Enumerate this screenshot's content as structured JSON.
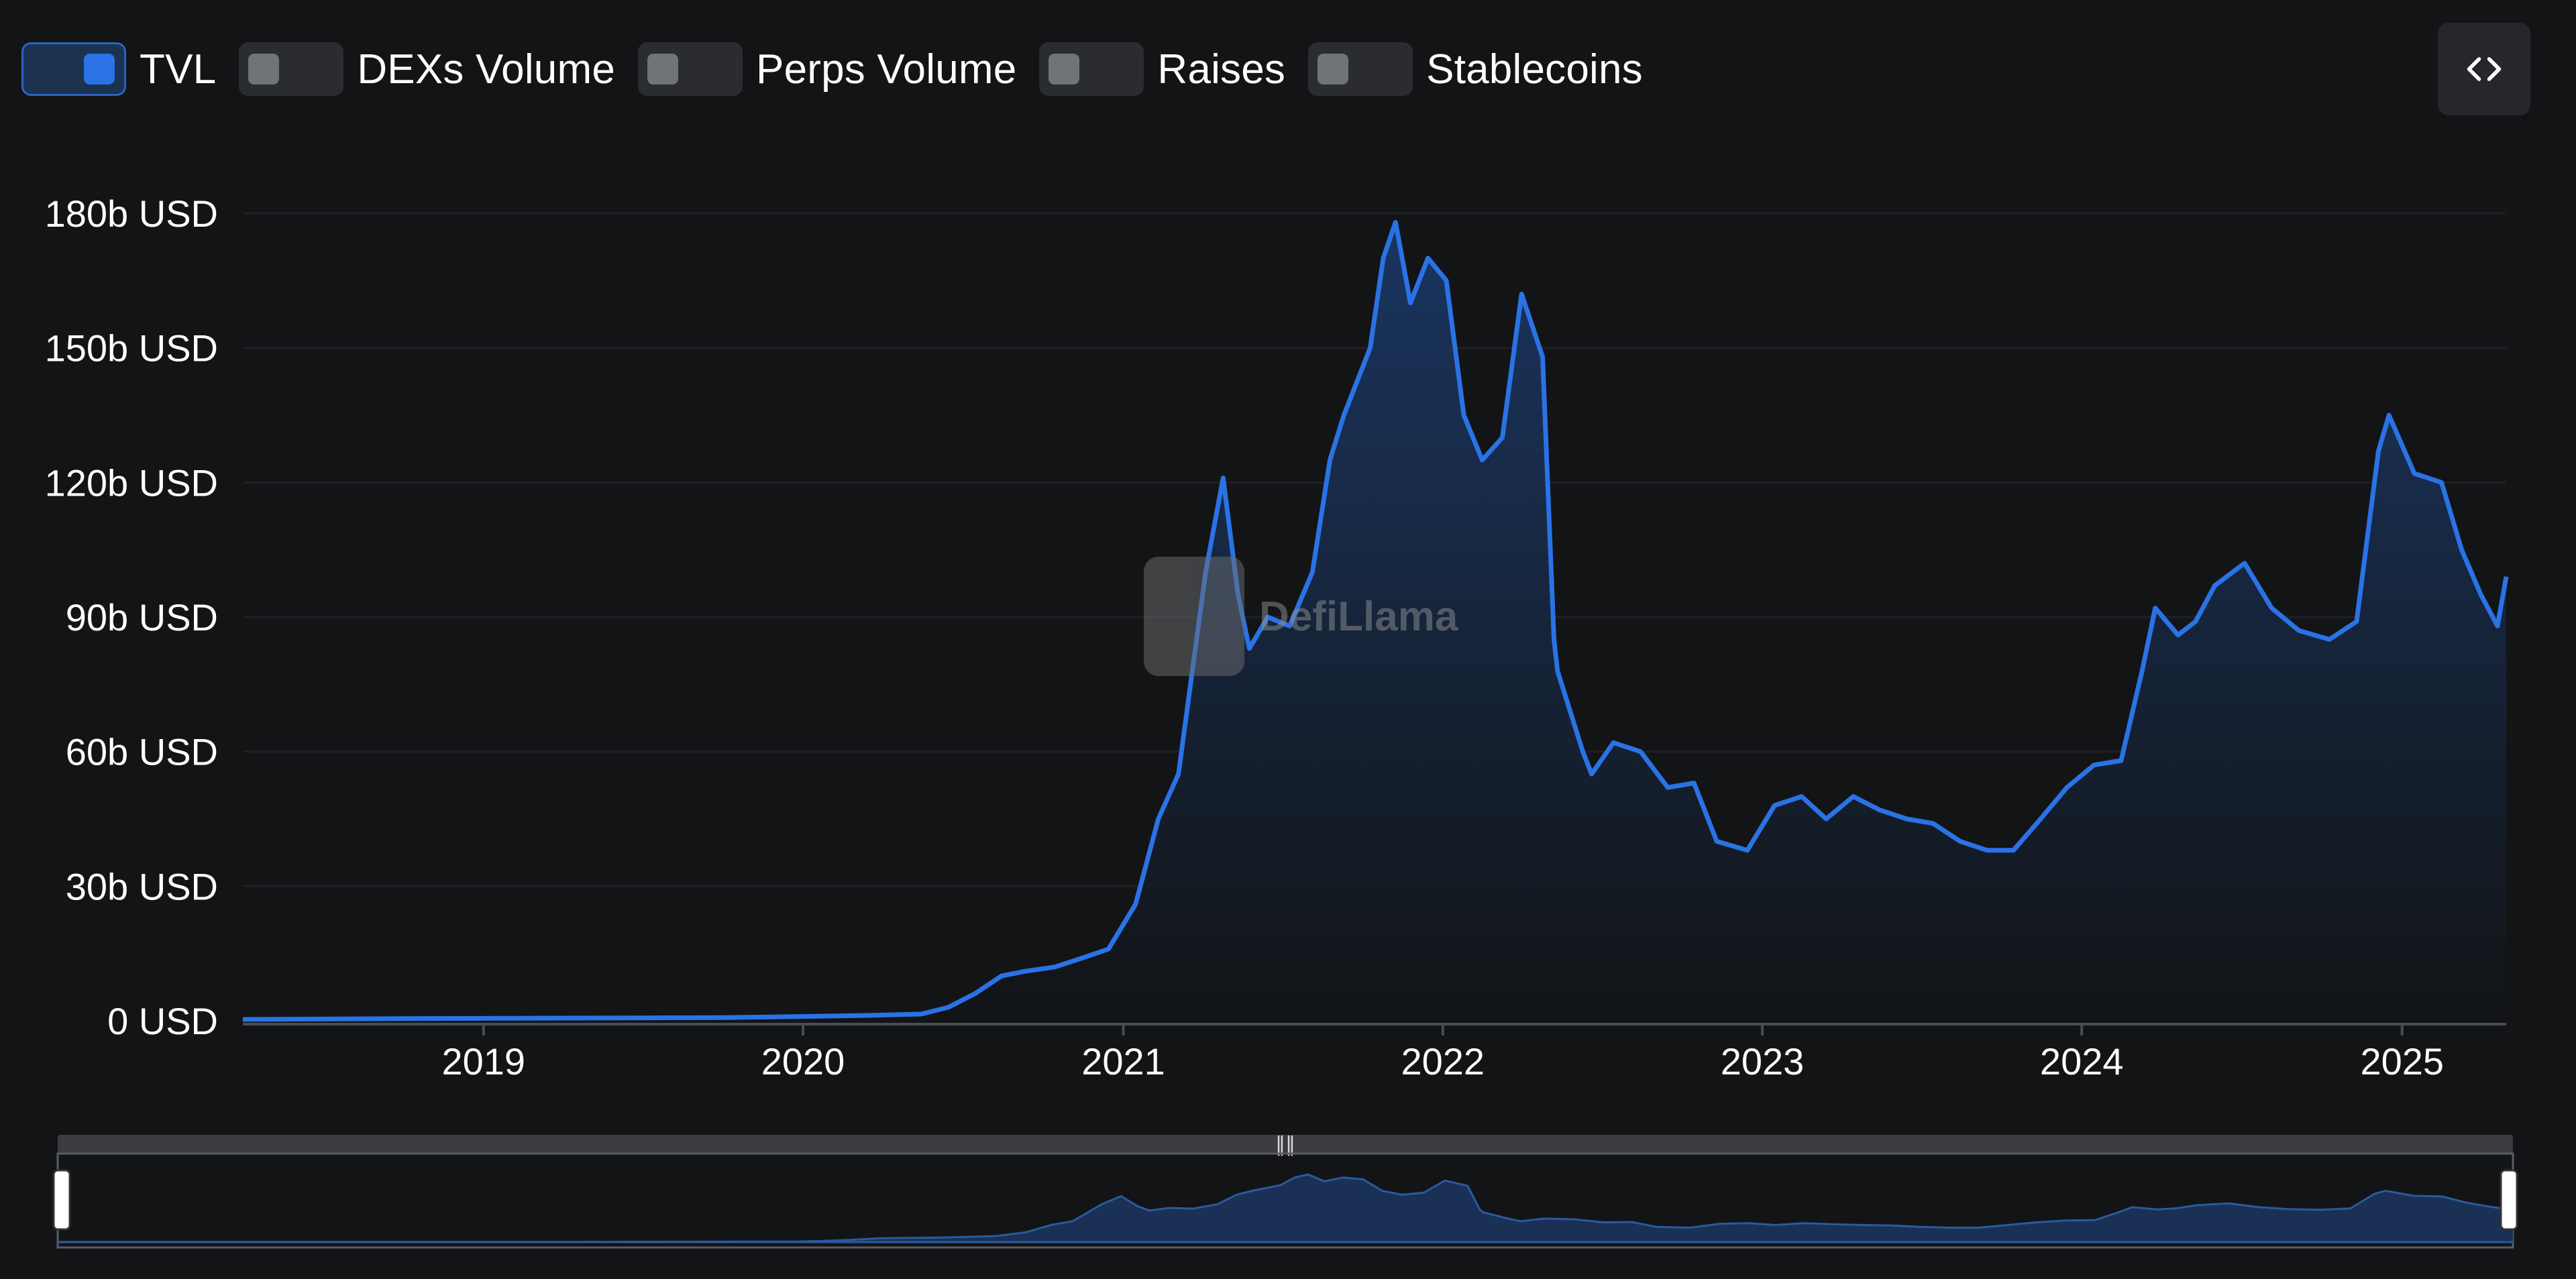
{
  "toggles": [
    {
      "label": "TVL",
      "on": true
    },
    {
      "label": "DEXs Volume",
      "on": false
    },
    {
      "label": "Perps Volume",
      "on": false
    },
    {
      "label": "Raises",
      "on": false
    },
    {
      "label": "Stablecoins",
      "on": false
    }
  ],
  "embed_button_icon": "code-brackets-icon",
  "watermark": {
    "text": "DefiLlama"
  },
  "colors": {
    "background": "#121416",
    "line": "#2a72e5",
    "area_top": "#1a3560",
    "area_bottom": "#121416",
    "grid": "#1e2024",
    "axis_text": "#ffffff",
    "scrollbar_track": "#3a3c3f",
    "brush_fill": "#1a3055"
  },
  "chart_data": {
    "type": "area",
    "title": "",
    "xlabel": "",
    "ylabel": "",
    "y_unit": "USD",
    "ylim": [
      0,
      180
    ],
    "y_ticks": [
      "0 USD",
      "30b USD",
      "60b USD",
      "90b USD",
      "120b USD",
      "150b USD",
      "180b USD"
    ],
    "y_tick_values": [
      0,
      30,
      60,
      90,
      120,
      150,
      180
    ],
    "xlim": [
      "2018-04-01",
      "2025-04-30"
    ],
    "x_ticks": [
      "2019",
      "2020",
      "2021",
      "2022",
      "2023",
      "2024",
      "2025"
    ],
    "grid": true,
    "legend": "none",
    "series": [
      {
        "name": "TVL",
        "x": [
          "2018-04-01",
          "2018-10-01",
          "2019-04-01",
          "2019-10-01",
          "2020-01-15",
          "2020-03-15",
          "2020-05-15",
          "2020-06-15",
          "2020-07-15",
          "2020-08-15",
          "2020-09-10",
          "2020-10-15",
          "2020-11-15",
          "2020-12-15",
          "2021-01-15",
          "2021-02-10",
          "2021-03-05",
          "2021-04-05",
          "2021-04-25",
          "2021-05-12",
          "2021-05-25",
          "2021-06-15",
          "2021-07-10",
          "2021-08-05",
          "2021-08-25",
          "2021-09-10",
          "2021-10-10",
          "2021-10-25",
          "2021-11-08",
          "2021-11-25",
          "2021-12-15",
          "2022-01-05",
          "2022-01-25",
          "2022-02-15",
          "2022-03-10",
          "2022-04-01",
          "2022-04-25",
          "2022-05-08",
          "2022-05-12",
          "2022-06-10",
          "2022-06-20",
          "2022-07-15",
          "2022-08-15",
          "2022-09-15",
          "2022-10-15",
          "2022-11-10",
          "2022-12-15",
          "2023-01-15",
          "2023-02-15",
          "2023-03-15",
          "2023-04-15",
          "2023-05-15",
          "2023-06-15",
          "2023-07-15",
          "2023-08-15",
          "2023-09-15",
          "2023-10-15",
          "2023-11-15",
          "2023-12-15",
          "2024-01-15",
          "2024-02-15",
          "2024-03-10",
          "2024-03-25",
          "2024-04-20",
          "2024-05-10",
          "2024-06-01",
          "2024-07-05",
          "2024-08-05",
          "2024-09-05",
          "2024-10-10",
          "2024-11-10",
          "2024-12-05",
          "2024-12-17",
          "2025-01-15",
          "2025-02-15",
          "2025-03-10",
          "2025-04-01",
          "2025-04-20",
          "2025-04-30"
        ],
        "values": [
          0.3,
          0.5,
          0.6,
          0.7,
          1,
          1.2,
          1.5,
          3,
          6,
          10,
          11,
          12,
          14,
          16,
          26,
          45,
          55,
          100,
          121,
          95,
          83,
          90,
          88,
          100,
          125,
          135,
          150,
          170,
          178,
          160,
          170,
          165,
          135,
          125,
          130,
          162,
          148,
          85,
          78,
          60,
          55,
          62,
          60,
          52,
          53,
          40,
          38,
          48,
          50,
          45,
          50,
          47,
          45,
          44,
          40,
          38,
          38,
          45,
          52,
          57,
          58,
          78,
          92,
          86,
          89,
          97,
          102,
          92,
          87,
          85,
          89,
          127,
          135,
          122,
          120,
          105,
          95,
          88,
          99
        ]
      }
    ]
  }
}
